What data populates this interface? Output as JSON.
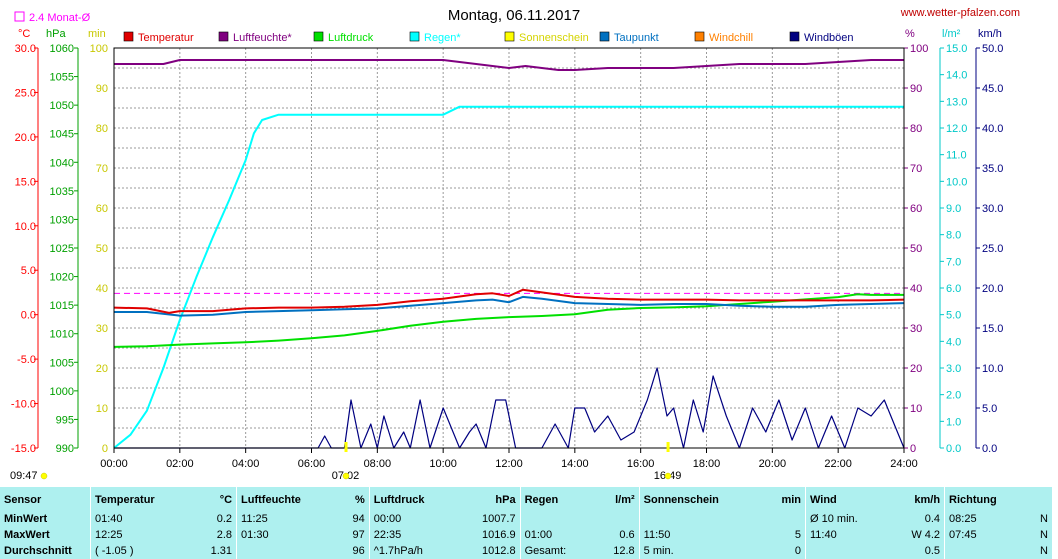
{
  "header": {
    "title": "Montag, 06.11.2017",
    "source": "www.wetter-pfalzen.com",
    "monthly_avg_label": "2.4 Monat-Ø"
  },
  "legend": [
    {
      "name": "Temperatur",
      "color": "#e00000"
    },
    {
      "name": "Luftfeuchte*",
      "color": "#800080"
    },
    {
      "name": "Luftdruck",
      "color": "#00e000"
    },
    {
      "name": "Regen*",
      "color": "#00ffff"
    },
    {
      "name": "Sonnenschein",
      "color": "#ffff00"
    },
    {
      "name": "Taupunkt",
      "color": "#0070c0"
    },
    {
      "name": "Windchill",
      "color": "#ff8000"
    },
    {
      "name": "Windböen",
      "color": "#000080"
    }
  ],
  "axes": {
    "temperature": {
      "unit": "°C",
      "min": -15,
      "max": 30,
      "ticks": [
        "30.0",
        "25.0",
        "20.0",
        "15.0",
        "10.0",
        "5.0",
        "0.0",
        "-5.0",
        "-10.0",
        "-15.0"
      ]
    },
    "pressure": {
      "unit": "hPa",
      "min": 990,
      "max": 1060,
      "ticks": [
        "1060",
        "1055",
        "1050",
        "1045",
        "1040",
        "1035",
        "1030",
        "1025",
        "1020",
        "1015",
        "1010",
        "1005",
        "1000",
        "995",
        "990"
      ]
    },
    "sunshine": {
      "unit": "min",
      "min": 0,
      "max": 100,
      "ticks": [
        "100",
        "90",
        "80",
        "70",
        "60",
        "50",
        "40",
        "30",
        "20",
        "10",
        "0"
      ]
    },
    "humidity": {
      "unit": "%",
      "min": 0,
      "max": 100,
      "ticks": [
        "100",
        "90",
        "80",
        "70",
        "60",
        "50",
        "40",
        "30",
        "20",
        "10",
        "0"
      ]
    },
    "rain": {
      "unit": "l/m²",
      "min": 0,
      "max": 15,
      "ticks": [
        "15.0",
        "14.0",
        "13.0",
        "12.0",
        "11.0",
        "10.0",
        "9.0",
        "8.0",
        "7.0",
        "6.0",
        "5.0",
        "4.0",
        "3.0",
        "2.0",
        "1.0",
        "0.0"
      ]
    },
    "wind": {
      "unit": "km/h",
      "min": 0,
      "max": 50,
      "ticks": [
        "50.0",
        "45.0",
        "40.0",
        "35.0",
        "30.0",
        "25.0",
        "20.0",
        "15.0",
        "10.0",
        "5.0",
        "0.0"
      ]
    },
    "time_ticks": [
      "00:00",
      "02:00",
      "04:00",
      "06:00",
      "08:00",
      "10:00",
      "12:00",
      "14:00",
      "16:00",
      "18:00",
      "20:00",
      "22:00",
      "24:00"
    ]
  },
  "chart_data": {
    "type": "line",
    "title": "Montag, 06.11.2017",
    "x_unit": "hours",
    "xlim": [
      0,
      24
    ],
    "grid": true,
    "legend_position": "top",
    "monthly_avg_temperature": 2.4,
    "series": [
      {
        "name": "Temperatur",
        "axis": "temperature",
        "x": [
          0,
          1,
          1.67,
          2,
          3,
          4,
          5,
          6,
          7,
          8,
          9,
          10,
          11,
          11.5,
          12,
          12.42,
          13,
          14,
          15,
          16,
          17,
          18,
          19,
          20,
          21,
          22,
          23,
          24
        ],
        "y": [
          0.8,
          0.7,
          0.2,
          0.4,
          0.4,
          0.7,
          0.8,
          0.8,
          0.9,
          1.1,
          1.5,
          1.8,
          2.3,
          2.4,
          2.1,
          2.8,
          2.5,
          2.0,
          1.8,
          1.7,
          1.7,
          1.7,
          1.6,
          1.6,
          1.6,
          1.6,
          1.6,
          1.7
        ]
      },
      {
        "name": "Luftfeuchte*",
        "axis": "humidity",
        "x": [
          0,
          1.5,
          2,
          3,
          4,
          5,
          6,
          7,
          8,
          9,
          10,
          10.5,
          11,
          11.5,
          12,
          12.5,
          13,
          13.5,
          14,
          15,
          16,
          17,
          18,
          19,
          20,
          21,
          22,
          23,
          24
        ],
        "y": [
          96,
          96,
          97,
          97,
          97,
          97,
          97,
          97,
          97,
          97,
          97,
          96.5,
          96,
          95.5,
          95,
          95.5,
          95,
          94.5,
          94.5,
          95,
          95,
          95,
          95.5,
          96,
          96,
          96,
          96.5,
          97,
          97
        ]
      },
      {
        "name": "Luftdruck",
        "axis": "pressure",
        "x": [
          0,
          1,
          2,
          3,
          4,
          5,
          6,
          7,
          8,
          9,
          10,
          11,
          12,
          13,
          14,
          15,
          16,
          17,
          18,
          19,
          20,
          21,
          22,
          22.58,
          23,
          24
        ],
        "y": [
          1007.7,
          1007.8,
          1008.1,
          1008.3,
          1008.5,
          1008.8,
          1009.2,
          1009.7,
          1010.5,
          1011.4,
          1012.1,
          1012.6,
          1012.9,
          1013.1,
          1013.4,
          1014.2,
          1014.5,
          1014.6,
          1014.8,
          1015.2,
          1015.6,
          1016.0,
          1016.4,
          1016.9,
          1016.8,
          1016.8
        ]
      },
      {
        "name": "Regen*",
        "axis": "rain",
        "x": [
          0,
          0.5,
          1,
          1.5,
          2,
          2.5,
          3,
          3.5,
          4,
          4.25,
          4.5,
          5,
          6,
          7,
          8,
          9,
          10,
          10.5,
          11,
          12,
          13,
          14,
          15,
          16,
          17,
          18,
          19,
          20,
          21,
          22,
          23,
          24
        ],
        "y": [
          0,
          0.5,
          1.4,
          3.0,
          4.8,
          6.4,
          7.9,
          9.3,
          10.8,
          11.8,
          12.3,
          12.5,
          12.5,
          12.5,
          12.5,
          12.5,
          12.5,
          12.8,
          12.8,
          12.8,
          12.8,
          12.8,
          12.8,
          12.8,
          12.8,
          12.8,
          12.8,
          12.8,
          12.8,
          12.8,
          12.8,
          12.8
        ]
      },
      {
        "name": "Taupunkt",
        "axis": "temperature",
        "x": [
          0,
          1,
          2,
          3,
          4,
          5,
          6,
          7,
          8,
          9,
          10,
          11,
          11.5,
          12,
          12.42,
          13,
          14,
          15,
          16,
          17,
          18,
          19,
          20,
          21,
          22,
          23,
          24
        ],
        "y": [
          0.3,
          0.3,
          -0.1,
          0.0,
          0.3,
          0.4,
          0.5,
          0.6,
          0.7,
          1.0,
          1.3,
          1.6,
          1.7,
          1.4,
          2.0,
          1.8,
          1.3,
          1.2,
          1.1,
          1.2,
          1.2,
          1.0,
          0.9,
          0.9,
          1.1,
          1.2,
          1.3
        ]
      },
      {
        "name": "Windböen",
        "axis": "wind",
        "x": [
          0,
          5,
          6.2,
          6.4,
          6.6,
          7,
          7.2,
          7.5,
          7.8,
          8,
          8.2,
          8.5,
          8.8,
          9,
          9.3,
          9.6,
          10,
          10.5,
          10.8,
          11,
          11.3,
          11.6,
          11.9,
          12.2,
          12.5,
          13,
          13.4,
          13.8,
          14,
          14.3,
          14.6,
          15,
          15.4,
          15.8,
          16.2,
          16.5,
          16.8,
          17,
          17.3,
          17.6,
          17.9,
          18.2,
          18.6,
          19,
          19.4,
          19.8,
          20.2,
          20.6,
          21,
          21.4,
          21.8,
          22.2,
          22.6,
          23,
          23.4,
          23.8,
          24
        ],
        "y": [
          0,
          0,
          0,
          1.5,
          0,
          0,
          6,
          0,
          3,
          0,
          4,
          0,
          2,
          0,
          6,
          0,
          5,
          0,
          2,
          3,
          0,
          6,
          6,
          0,
          0,
          0,
          3,
          0,
          5,
          5,
          2,
          4,
          1,
          2,
          6,
          10,
          4,
          5,
          0,
          6,
          2,
          9,
          4,
          0,
          5,
          2,
          6,
          1,
          5,
          0,
          4,
          0,
          5,
          4,
          6,
          2,
          0
        ]
      }
    ],
    "sunshine_markers": [
      "07:02",
      "16:49"
    ],
    "start_time_marker": "09:47"
  },
  "table": {
    "headers": [
      {
        "label": "Sensor",
        "unit": ""
      },
      {
        "label": "Temperatur",
        "unit": "°C"
      },
      {
        "label": "Luftfeuchte",
        "unit": "%"
      },
      {
        "label": "Luftdruck",
        "unit": "hPa"
      },
      {
        "label": "Regen",
        "unit": "l/m²"
      },
      {
        "label": "Sonnenschein",
        "unit": "min"
      },
      {
        "label": "Wind",
        "unit": "km/h"
      },
      {
        "label": "Richtung",
        "unit": ""
      }
    ],
    "rows": [
      {
        "label": "MinWert",
        "temp_time": "01:40",
        "temp_value": "0.2",
        "hum_time": "11:25",
        "hum_value": "94",
        "press_time": "00:00",
        "press_value": "1007.7",
        "rain_time": "",
        "rain_value": "",
        "sun_time": "",
        "sun_value": "",
        "wind_time": "Ø 10 min.",
        "wind_value": "0.4",
        "dir_time": "08:25",
        "dir_value": "N"
      },
      {
        "label": "MaxWert",
        "temp_time": "12:25",
        "temp_value": "2.8",
        "hum_time": "01:30",
        "hum_value": "97",
        "press_time": "22:35",
        "press_value": "1016.9",
        "rain_time": "01:00",
        "rain_value": "0.6",
        "sun_time": "11:50",
        "sun_value": "5",
        "wind_time": "11:40",
        "wind_value": "W 4.2",
        "dir_time": "07:45",
        "dir_value": "N"
      },
      {
        "label": "Durchschnitt",
        "temp_time": "( -1.05 )",
        "temp_value": "1.31",
        "hum_time": "",
        "hum_value": "96",
        "press_time": "^1.7hPa/h",
        "press_value": "1012.8",
        "rain_time": "Gesamt:",
        "rain_value": "12.8",
        "sun_time": "5 min.",
        "sun_value": "0",
        "wind_time": "",
        "wind_value": "0.5",
        "dir_time": "",
        "dir_value": "N"
      }
    ]
  }
}
